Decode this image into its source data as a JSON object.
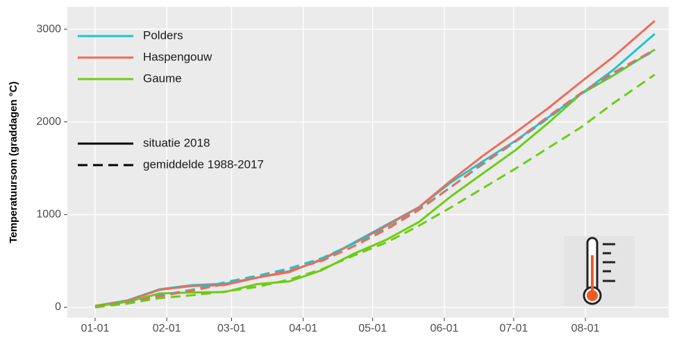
{
  "chart_data": {
    "type": "line",
    "y_label": "Temperatuursom (graddagen °C)",
    "x": [
      0,
      14,
      28,
      42,
      56,
      70,
      84,
      98,
      112,
      126,
      140,
      154,
      168,
      182,
      196,
      210,
      224,
      242
    ],
    "series": [
      {
        "name": "Polders",
        "color": "#1fc3cd",
        "linetype": "solid",
        "values": [
          15,
          75,
          195,
          240,
          255,
          320,
          390,
          510,
          700,
          890,
          1080,
          1350,
          1580,
          1800,
          2050,
          2300,
          2560,
          2950
        ]
      },
      {
        "name": "Haspengouw",
        "color": "#ee6b58",
        "linetype": "solid",
        "values": [
          15,
          70,
          190,
          230,
          240,
          320,
          380,
          520,
          690,
          880,
          1080,
          1370,
          1640,
          1890,
          2150,
          2430,
          2700,
          3090
        ]
      },
      {
        "name": "Gaume",
        "color": "#6dcc14",
        "linetype": "solid",
        "values": [
          10,
          60,
          150,
          160,
          165,
          250,
          280,
          400,
          580,
          730,
          920,
          1200,
          1450,
          1700,
          1990,
          2300,
          2500,
          2780
        ]
      },
      {
        "name": "Polders",
        "color": "#1fc3cd",
        "linetype": "dashed",
        "values": [
          5,
          55,
          130,
          190,
          270,
          340,
          420,
          530,
          690,
          850,
          1060,
          1300,
          1550,
          1790,
          2040,
          2300,
          2520,
          2770
        ]
      },
      {
        "name": "Haspengouw",
        "color": "#ee6b58",
        "linetype": "dashed",
        "values": [
          5,
          50,
          120,
          180,
          250,
          320,
          400,
          500,
          660,
          840,
          1050,
          1300,
          1560,
          1800,
          2060,
          2310,
          2530,
          2780
        ]
      },
      {
        "name": "Gaume",
        "color": "#6dcc14",
        "linetype": "dashed",
        "values": [
          0,
          40,
          100,
          130,
          170,
          220,
          300,
          410,
          560,
          700,
          880,
          1080,
          1290,
          1500,
          1720,
          1940,
          2200,
          2510
        ]
      }
    ],
    "linetypes": [
      {
        "name": "situatie 2018",
        "dash": "solid"
      },
      {
        "name": "gemiddelde 1988-2017",
        "dash": "dashed"
      }
    ],
    "xlim": [
      -12,
      248
    ],
    "xticks": [
      {
        "value": 0,
        "label": "01-01"
      },
      {
        "value": 31,
        "label": "02-01"
      },
      {
        "value": 59,
        "label": "03-01"
      },
      {
        "value": 90,
        "label": "04-01"
      },
      {
        "value": 120,
        "label": "05-01"
      },
      {
        "value": 151,
        "label": "06-01"
      },
      {
        "value": 181,
        "label": "07-01"
      },
      {
        "value": 212,
        "label": "08-01"
      }
    ],
    "ylim": [
      -112,
      3240
    ],
    "yticks": [
      0,
      1000,
      2000,
      3000
    ],
    "grid": true,
    "legend_position": "top-left"
  }
}
